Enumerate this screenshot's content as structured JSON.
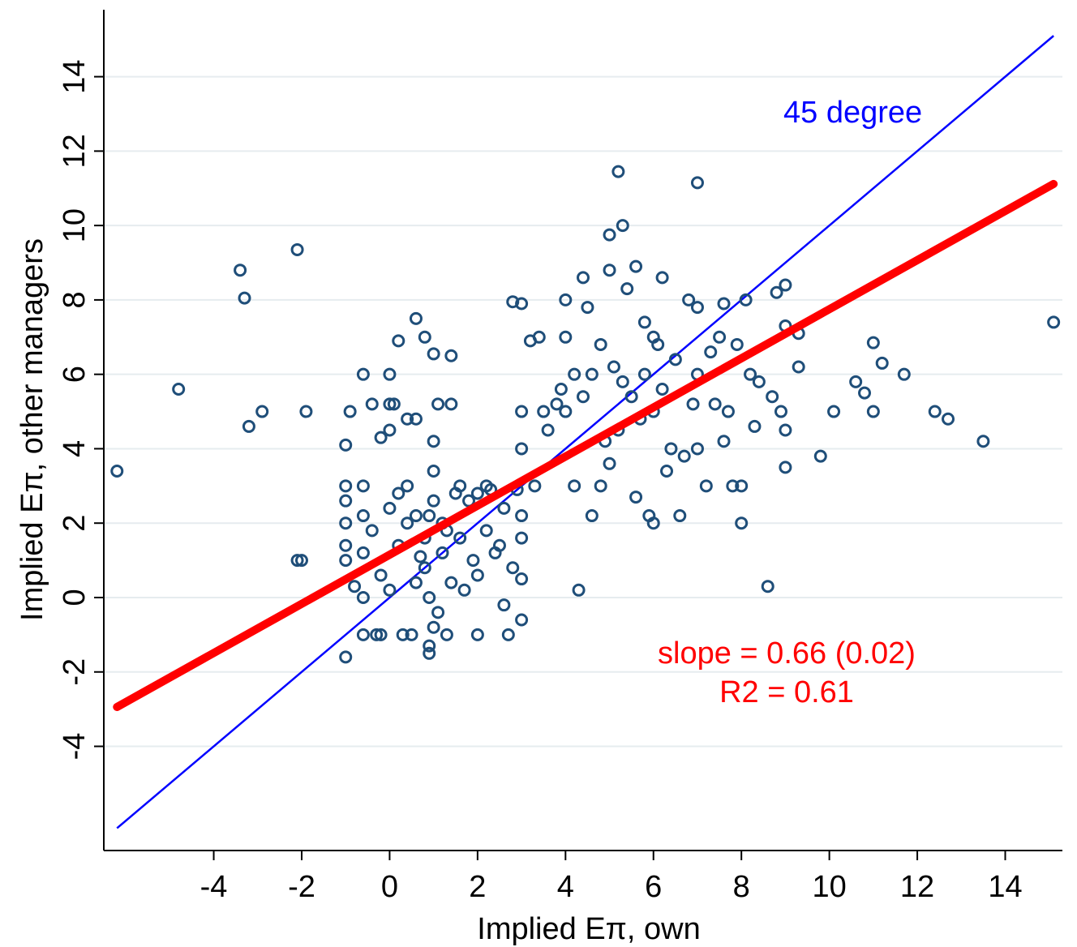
{
  "chart_data": {
    "type": "scatter",
    "title": "",
    "xlabel": "Implied Eπ, own",
    "ylabel": "Implied Eπ, other managers",
    "xlim": [
      -6.5,
      15.3
    ],
    "ylim": [
      -6.8,
      15.8
    ],
    "x_ticks": [
      -4,
      -2,
      0,
      2,
      4,
      6,
      8,
      10,
      12,
      14
    ],
    "y_ticks": [
      -4,
      -2,
      0,
      2,
      4,
      6,
      8,
      10,
      12,
      14
    ],
    "x_tick_labels": [
      "-4",
      "-2",
      "0",
      "2",
      "4",
      "6",
      "8",
      "10",
      "12",
      "14"
    ],
    "y_tick_labels": [
      "-4",
      "-2",
      "0",
      "2",
      "4",
      "6",
      "8",
      "10",
      "12",
      "14"
    ],
    "grid": "horizontal",
    "marker_color": "#1f4e79",
    "fit_line": {
      "color": "#ff0000",
      "slope": 0.66,
      "intercept": 1.15,
      "x_range": [
        -6.2,
        15.1
      ]
    },
    "reference_line": {
      "label": "45 degree",
      "color": "#0000ff",
      "x_range": [
        -6.2,
        15.1
      ]
    },
    "annotations": {
      "slope": "slope = 0.66 (0.02)",
      "r2": "R2 = 0.61"
    },
    "series": [
      {
        "points": [
          [
            -6.2,
            3.4
          ],
          [
            -4.8,
            5.6
          ],
          [
            -3.4,
            8.8
          ],
          [
            -3.3,
            8.05
          ],
          [
            -3.2,
            4.6
          ],
          [
            -2.9,
            5.0
          ],
          [
            -2.1,
            9.35
          ],
          [
            -2.1,
            1.0
          ],
          [
            -2.0,
            1.0
          ],
          [
            -1.9,
            5.0
          ],
          [
            -1.0,
            -1.6
          ],
          [
            -1.0,
            4.1
          ],
          [
            -0.9,
            5.0
          ],
          [
            -0.6,
            6.0
          ],
          [
            -0.6,
            -1.0
          ],
          [
            -0.4,
            5.2
          ],
          [
            -0.3,
            -1.0
          ],
          [
            -0.2,
            -1.0
          ],
          [
            -0.2,
            4.3
          ],
          [
            0.0,
            6.0
          ],
          [
            0.0,
            4.5
          ],
          [
            0.0,
            5.2
          ],
          [
            0.1,
            5.2
          ],
          [
            0.2,
            6.9
          ],
          [
            0.4,
            4.8
          ],
          [
            0.6,
            7.5
          ],
          [
            0.6,
            4.8
          ],
          [
            0.8,
            7.0
          ],
          [
            1.0,
            6.55
          ],
          [
            1.0,
            4.2
          ],
          [
            1.1,
            5.2
          ],
          [
            1.4,
            6.5
          ],
          [
            1.4,
            5.2
          ],
          [
            1.6,
            3.0
          ],
          [
            2.0,
            2.8
          ],
          [
            2.2,
            3.0
          ],
          [
            2.6,
            -0.2
          ],
          [
            2.7,
            -1.0
          ],
          [
            3.0,
            -0.6
          ],
          [
            3.0,
            4.0
          ],
          [
            2.0,
            -1.0
          ],
          [
            1.3,
            -1.0
          ],
          [
            0.9,
            -1.5
          ],
          [
            0.9,
            -1.3
          ],
          [
            0.5,
            -1.0
          ],
          [
            0.3,
            -1.0
          ],
          [
            -0.6,
            0.0
          ],
          [
            -0.8,
            0.3
          ],
          [
            -1.0,
            1.0
          ],
          [
            -1.0,
            1.4
          ],
          [
            -1.0,
            2.0
          ],
          [
            -1.0,
            2.6
          ],
          [
            -1.0,
            3.0
          ],
          [
            -0.6,
            1.2
          ],
          [
            -0.6,
            2.2
          ],
          [
            -0.6,
            3.0
          ],
          [
            -0.4,
            1.8
          ],
          [
            -0.2,
            0.6
          ],
          [
            0.0,
            2.4
          ],
          [
            0.0,
            0.2
          ],
          [
            0.2,
            1.4
          ],
          [
            0.4,
            3.0
          ],
          [
            0.6,
            2.2
          ],
          [
            0.8,
            0.8
          ],
          [
            1.0,
            3.4
          ],
          [
            1.2,
            2.0
          ],
          [
            1.4,
            0.4
          ],
          [
            1.6,
            1.6
          ],
          [
            1.8,
            2.6
          ],
          [
            2.0,
            0.6
          ],
          [
            2.2,
            1.8
          ],
          [
            2.4,
            1.2
          ],
          [
            2.6,
            2.4
          ],
          [
            2.8,
            0.8
          ],
          [
            3.0,
            1.6
          ],
          [
            3.0,
            2.2
          ],
          [
            3.0,
            0.5
          ],
          [
            1.0,
            2.6
          ],
          [
            0.8,
            1.6
          ],
          [
            1.2,
            1.2
          ],
          [
            0.6,
            0.4
          ],
          [
            0.4,
            2.0
          ],
          [
            1.5,
            2.8
          ],
          [
            0.2,
            2.8
          ],
          [
            1.9,
            1.0
          ],
          [
            2.5,
            1.4
          ],
          [
            0.9,
            0.0
          ],
          [
            1.1,
            -0.4
          ],
          [
            1.0,
            -0.8
          ],
          [
            0.9,
            2.2
          ],
          [
            1.3,
            1.8
          ],
          [
            0.7,
            1.1
          ],
          [
            2.3,
            2.9
          ],
          [
            1.7,
            0.2
          ],
          [
            2.9,
            2.9
          ],
          [
            3.3,
            3.0
          ],
          [
            3.2,
            6.9
          ],
          [
            2.8,
            7.95
          ],
          [
            3.0,
            7.9
          ],
          [
            3.4,
            7.0
          ],
          [
            3.0,
            5.0
          ],
          [
            3.5,
            5.0
          ],
          [
            3.6,
            4.5
          ],
          [
            3.8,
            5.2
          ],
          [
            4.0,
            5.0
          ],
          [
            4.0,
            8.0
          ],
          [
            4.0,
            7.0
          ],
          [
            4.2,
            3.0
          ],
          [
            4.3,
            0.2
          ],
          [
            4.4,
            8.6
          ],
          [
            4.5,
            7.8
          ],
          [
            4.6,
            6.0
          ],
          [
            4.6,
            2.2
          ],
          [
            4.8,
            3.0
          ],
          [
            5.0,
            9.75
          ],
          [
            5.0,
            8.8
          ],
          [
            5.2,
            11.45
          ],
          [
            5.2,
            4.5
          ],
          [
            5.3,
            10.0
          ],
          [
            5.4,
            8.3
          ],
          [
            5.6,
            8.9
          ],
          [
            5.6,
            2.7
          ],
          [
            5.8,
            6.0
          ],
          [
            5.9,
            2.2
          ],
          [
            6.0,
            7.0
          ],
          [
            6.0,
            5.0
          ],
          [
            6.0,
            2.0
          ],
          [
            6.2,
            8.6
          ],
          [
            6.4,
            4.0
          ],
          [
            6.6,
            2.2
          ],
          [
            6.8,
            8.0
          ],
          [
            7.0,
            11.15
          ],
          [
            7.0,
            7.8
          ],
          [
            7.0,
            6.0
          ],
          [
            7.0,
            4.0
          ],
          [
            7.2,
            3.0
          ],
          [
            7.4,
            5.2
          ],
          [
            7.6,
            7.9
          ],
          [
            7.6,
            4.2
          ],
          [
            7.8,
            3.0
          ],
          [
            8.0,
            3.0
          ],
          [
            8.0,
            2.0
          ],
          [
            8.1,
            8.0
          ],
          [
            8.2,
            6.0
          ],
          [
            8.4,
            5.8
          ],
          [
            8.6,
            0.3
          ],
          [
            8.8,
            8.2
          ],
          [
            9.0,
            8.4
          ],
          [
            9.0,
            7.3
          ],
          [
            9.0,
            4.5
          ],
          [
            9.0,
            3.5
          ],
          [
            9.3,
            7.1
          ],
          [
            9.3,
            6.2
          ],
          [
            9.8,
            3.8
          ],
          [
            10.1,
            5.0
          ],
          [
            10.6,
            5.8
          ],
          [
            10.8,
            5.5
          ],
          [
            11.0,
            6.85
          ],
          [
            11.0,
            5.0
          ],
          [
            11.2,
            6.3
          ],
          [
            11.7,
            6.0
          ],
          [
            12.4,
            5.0
          ],
          [
            12.7,
            4.8
          ],
          [
            13.5,
            4.2
          ],
          [
            15.1,
            7.4
          ],
          [
            4.8,
            6.8
          ],
          [
            5.1,
            6.2
          ],
          [
            5.5,
            5.4
          ],
          [
            5.7,
            4.8
          ],
          [
            6.2,
            5.6
          ],
          [
            6.5,
            6.4
          ],
          [
            6.9,
            5.2
          ],
          [
            7.3,
            6.6
          ],
          [
            7.7,
            5.0
          ],
          [
            8.3,
            4.6
          ],
          [
            8.7,
            5.4
          ],
          [
            5.3,
            5.8
          ],
          [
            4.4,
            5.4
          ],
          [
            4.9,
            4.2
          ],
          [
            6.7,
            3.8
          ],
          [
            7.9,
            6.8
          ],
          [
            5.8,
            7.4
          ],
          [
            6.3,
            3.4
          ],
          [
            4.2,
            6.0
          ],
          [
            8.9,
            5.0
          ],
          [
            7.5,
            7.0
          ],
          [
            6.1,
            6.8
          ],
          [
            5.0,
            3.6
          ],
          [
            3.9,
            5.6
          ]
        ]
      }
    ]
  }
}
